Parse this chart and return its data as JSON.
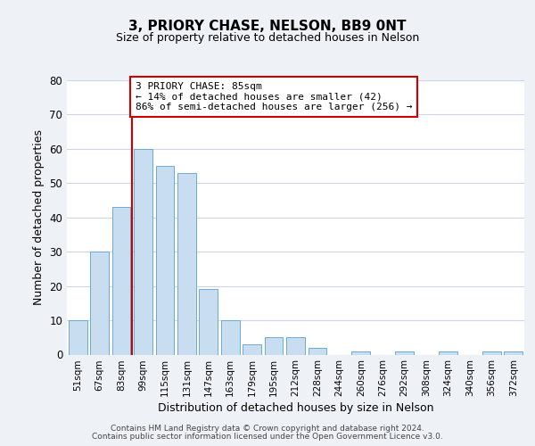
{
  "title": "3, PRIORY CHASE, NELSON, BB9 0NT",
  "subtitle": "Size of property relative to detached houses in Nelson",
  "xlabel": "Distribution of detached houses by size in Nelson",
  "ylabel": "Number of detached properties",
  "bar_labels": [
    "51sqm",
    "67sqm",
    "83sqm",
    "99sqm",
    "115sqm",
    "131sqm",
    "147sqm",
    "163sqm",
    "179sqm",
    "195sqm",
    "212sqm",
    "228sqm",
    "244sqm",
    "260sqm",
    "276sqm",
    "292sqm",
    "308sqm",
    "324sqm",
    "340sqm",
    "356sqm",
    "372sqm"
  ],
  "bar_values": [
    10,
    30,
    43,
    60,
    55,
    53,
    19,
    10,
    3,
    5,
    5,
    2,
    0,
    1,
    0,
    1,
    0,
    1,
    0,
    1,
    1
  ],
  "bar_color": "#c8ddef",
  "bar_edge_color": "#6aaad4",
  "background_color": "#eef2f7",
  "plot_bg_color": "#ffffff",
  "grid_color": "#ccd6e8",
  "annotation_box_text": "3 PRIORY CHASE: 85sqm\n← 14% of detached houses are smaller (42)\n86% of semi-detached houses are larger (256) →",
  "annotation_box_color": "#ffffff",
  "annotation_box_edge_color": "#cc0000",
  "marker_line_color": "#cc0000",
  "ylim": [
    0,
    80
  ],
  "yticks": [
    0,
    10,
    20,
    30,
    40,
    50,
    60,
    70,
    80
  ],
  "footer_line1": "Contains HM Land Registry data © Crown copyright and database right 2024.",
  "footer_line2": "Contains public sector information licensed under the Open Government Licence v3.0."
}
